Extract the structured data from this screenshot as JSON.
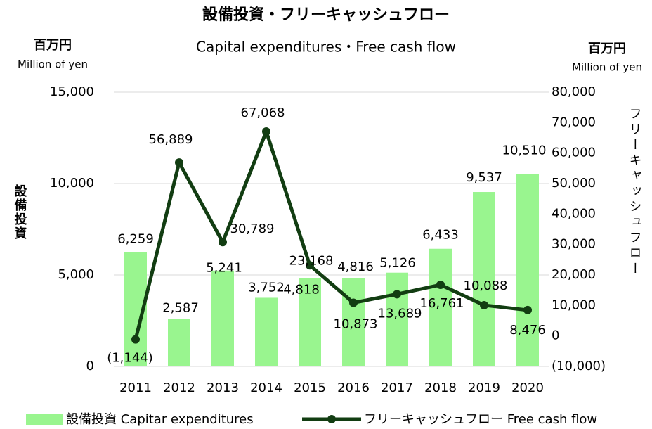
{
  "chart_data": {
    "type": "bar_line",
    "title": "設備投資・フリーキャッシュフロー",
    "subtitle": "Capital expenditures・Free cash flow",
    "y_unit": "百万円",
    "y_unit_en": "Million of yen",
    "y2_unit": "百万円",
    "y2_unit_en": "Million of yen",
    "y_label": "設備投資",
    "y2_label": "フリーキャッシュフロー",
    "categories": [
      "2011",
      "2012",
      "2013",
      "2014",
      "2015",
      "2016",
      "2017",
      "2018",
      "2019",
      "2020"
    ],
    "series": [
      {
        "name": "設備投資 Capitar expenditures",
        "type": "bar",
        "color": "#99f58f",
        "values": [
          6259,
          2587,
          5241,
          3752,
          4818,
          4816,
          5126,
          6433,
          9537,
          10510
        ],
        "value_labels": [
          "6,259",
          "2,587",
          "5,241",
          "3,752",
          "4,818",
          "4,816",
          "5,126",
          "6,433",
          "9,537",
          "10,510"
        ]
      },
      {
        "name": "フリーキャッシュフロー Free cash flow",
        "type": "line",
        "axis": "y2",
        "color": "#123d12",
        "values": [
          -1144,
          56889,
          30789,
          67068,
          23168,
          10873,
          13689,
          16761,
          10088,
          8476
        ],
        "value_labels": [
          "(1,144)",
          "56,889",
          "30,789",
          "67,068",
          "23,168",
          "10,873",
          "13,689",
          "16,761",
          "10,088",
          "8,476"
        ]
      }
    ],
    "ylim": [
      0,
      15000
    ],
    "yticks": [
      0,
      {
        "value": 5000,
        "label": "5,000"
      },
      {
        "value": 10000,
        "label": "10,000"
      },
      {
        "value": 15000,
        "label": "15,000"
      }
    ],
    "y2lim": [
      -10000,
      80000
    ],
    "y2ticks": [
      {
        "value": -10000,
        "label": "(10,000)"
      },
      0,
      {
        "value": 10000,
        "label": "10,000"
      },
      {
        "value": 20000,
        "label": "20,000"
      },
      {
        "value": 30000,
        "label": "30,000"
      },
      {
        "value": 40000,
        "label": "40,000"
      },
      {
        "value": 50000,
        "label": "50,000"
      },
      {
        "value": 60000,
        "label": "60,000"
      },
      {
        "value": 70000,
        "label": "70,000"
      },
      {
        "value": 80000,
        "label": "80,000"
      }
    ],
    "grid": true,
    "legend": "bottom"
  }
}
